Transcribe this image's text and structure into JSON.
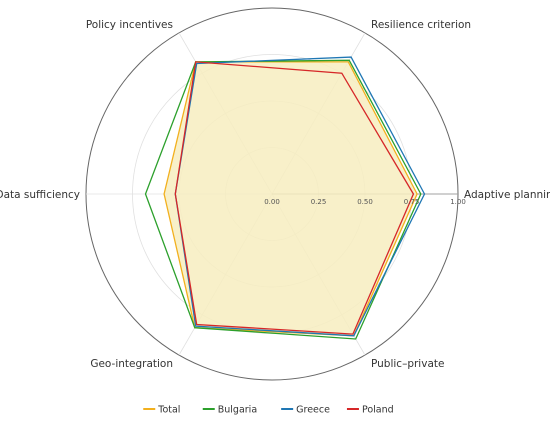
{
  "chart_data": {
    "type": "radar",
    "title": "",
    "axes": [
      "Adaptive planning",
      "Resilience criterion",
      "Policy incentives",
      "Data sufficiency",
      "Geo-integration",
      "Public–private"
    ],
    "radial_ticks": [
      "0.00",
      "0.25",
      "0.50",
      "0.75",
      "1.00"
    ],
    "rlim": [
      0,
      1
    ],
    "grid": true,
    "legend_position": "bottom",
    "series": [
      {
        "name": "Total",
        "color": "#f2b01e",
        "fill": "#f7edc0",
        "values": [
          0.78,
          0.82,
          0.82,
          0.58,
          0.83,
          0.88
        ]
      },
      {
        "name": "Bulgaria",
        "color": "#2ca02c",
        "fill": "none",
        "values": [
          0.8,
          0.83,
          0.82,
          0.68,
          0.83,
          0.9
        ]
      },
      {
        "name": "Greece",
        "color": "#1f77b4",
        "fill": "none",
        "values": [
          0.82,
          0.85,
          0.81,
          0.52,
          0.82,
          0.88
        ]
      },
      {
        "name": "Poland",
        "color": "#d62728",
        "fill": "none",
        "values": [
          0.76,
          0.75,
          0.82,
          0.52,
          0.81,
          0.87
        ]
      }
    ]
  }
}
